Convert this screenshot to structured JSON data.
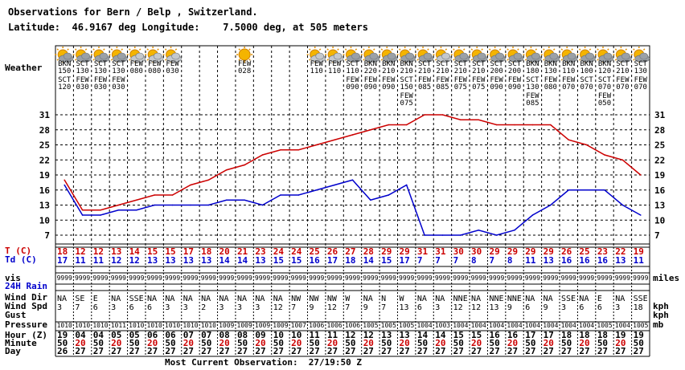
{
  "header": {
    "title": "Observations for Bern / Belp , Switzerland.",
    "latlon": "Latitude:  46.9167 deg Longitude:    7.5000 deg, at 505 meters"
  },
  "footer": {
    "most_current": "Most Current Observation:  27/19:50 Z"
  },
  "row_labels": {
    "weather": "Weather",
    "t": "T (C)",
    "td": "Td (C)",
    "vis": "vis",
    "rain": "24H Rain",
    "wdir": "Wind Dir",
    "wspd": "Wind Spd",
    "gust": "Gust",
    "pressure": "Pressure",
    "hour": "Hour (Z)",
    "minute": "Minute",
    "day": "Day"
  },
  "units": {
    "vis": "miles",
    "wspd": "kph",
    "gust": "kph",
    "pressure": "mb"
  },
  "colors": {
    "temp": "#cc0000",
    "dew": "#0000cc",
    "time_red": "#cc0000",
    "grid": "#000000"
  },
  "observations": [
    {
      "clouds": [
        "BKN150",
        "SCT120"
      ],
      "icon": "cloudy-icon",
      "t": 18,
      "td": 17,
      "vis": "9999",
      "wdir": "NA",
      "wspd": "3",
      "pres": "1010",
      "hour": "19",
      "min": "50",
      "day": "26"
    },
    {
      "clouds": [
        "SCT130",
        "FEW030"
      ],
      "icon": "cloudy-icon",
      "t": 12,
      "td": 11,
      "vis": "9999",
      "wdir": "SE",
      "wspd": "7",
      "pres": "1010",
      "hour": "04",
      "min": "20",
      "day": "27"
    },
    {
      "clouds": [
        "SCT130",
        "FEW030"
      ],
      "icon": "cloudy-icon",
      "t": 12,
      "td": 11,
      "vis": "9999",
      "wdir": "E",
      "wspd": "6",
      "pres": "1010",
      "hour": "04",
      "min": "50",
      "day": "27"
    },
    {
      "clouds": [
        "SCT130",
        "FEW030"
      ],
      "icon": "cloudy-icon",
      "t": 13,
      "td": 12,
      "vis": "9999",
      "wdir": "NA",
      "wspd": "3",
      "pres": "1011",
      "hour": "05",
      "min": "20",
      "day": "27"
    },
    {
      "clouds": [
        "FEW080"
      ],
      "icon": "partly-sunny-icon",
      "t": 14,
      "td": 12,
      "vis": "9999",
      "wdir": "SSE",
      "wspd": "6",
      "pres": "1010",
      "hour": "05",
      "min": "50",
      "day": "27"
    },
    {
      "clouds": [
        "FEW080"
      ],
      "icon": "partly-sunny-icon",
      "t": 15,
      "td": 13,
      "vis": "9999",
      "wdir": "NA",
      "wspd": "6",
      "pres": "1010",
      "hour": "06",
      "min": "20",
      "day": "27"
    },
    {
      "clouds": [
        "FEW030"
      ],
      "icon": "partly-sunny-icon",
      "t": 15,
      "td": 13,
      "vis": "9999",
      "wdir": "NA",
      "wspd": "3",
      "pres": "1010",
      "hour": "06",
      "min": "50",
      "day": "27"
    },
    {
      "clouds": [],
      "icon": "",
      "t": 17,
      "td": 13,
      "vis": "9999",
      "wdir": "NA",
      "wspd": "3",
      "pres": "1010",
      "hour": "07",
      "min": "20",
      "day": "27"
    },
    {
      "clouds": [],
      "icon": "",
      "t": 18,
      "td": 13,
      "vis": "9999",
      "wdir": "NA",
      "wspd": "2",
      "pres": "1010",
      "hour": "07",
      "min": "50",
      "day": "27"
    },
    {
      "clouds": [],
      "icon": "",
      "t": 20,
      "td": 14,
      "vis": "9999",
      "wdir": "NA",
      "wspd": "3",
      "pres": "1009",
      "hour": "08",
      "min": "20",
      "day": "27"
    },
    {
      "clouds": [
        "FEW028"
      ],
      "icon": "sunny-icon",
      "t": 21,
      "td": 14,
      "vis": "9999",
      "wdir": "NA",
      "wspd": "3",
      "pres": "1009",
      "hour": "08",
      "min": "50",
      "day": "27"
    },
    {
      "clouds": [],
      "icon": "",
      "t": 23,
      "td": 13,
      "vis": "9999",
      "wdir": "NA",
      "wspd": "3",
      "pres": "1009",
      "hour": "09",
      "min": "20",
      "day": "27"
    },
    {
      "clouds": [],
      "icon": "",
      "t": 24,
      "td": 15,
      "vis": "9999",
      "wdir": "NA",
      "wspd": "12",
      "pres": "1009",
      "hour": "10",
      "min": "50",
      "day": "27"
    },
    {
      "clouds": [],
      "icon": "",
      "t": 24,
      "td": 15,
      "vis": "9999",
      "wdir": "NW",
      "wspd": "7",
      "pres": "1007",
      "hour": "10",
      "min": "20",
      "day": "27"
    },
    {
      "clouds": [
        "FEW110"
      ],
      "icon": "partly-sunny-icon",
      "t": 25,
      "td": 16,
      "vis": "9999",
      "wdir": "NW",
      "wspd": "9",
      "pres": "1006",
      "hour": "11",
      "min": "50",
      "day": "27"
    },
    {
      "clouds": [
        "FEW110"
      ],
      "icon": "partly-sunny-icon",
      "t": 26,
      "td": 17,
      "vis": "9999",
      "wdir": "NW",
      "wspd": "12",
      "pres": "1006",
      "hour": "11",
      "min": "20",
      "day": "27"
    },
    {
      "clouds": [
        "SCT110",
        "FEW090"
      ],
      "icon": "cloudy-icon",
      "t": 27,
      "td": 18,
      "vis": "9999",
      "wdir": "W",
      "wspd": "7",
      "pres": "1006",
      "hour": "12",
      "min": "50",
      "day": "27"
    },
    {
      "clouds": [
        "BKN220",
        "FEW090"
      ],
      "icon": "cloudy-icon",
      "t": 28,
      "td": 14,
      "vis": "9999",
      "wdir": "NA",
      "wspd": "9",
      "pres": "1005",
      "hour": "12",
      "min": "20",
      "day": "27"
    },
    {
      "clouds": [
        "BKN210",
        "FEW090"
      ],
      "icon": "cloudy-icon",
      "t": 29,
      "td": 15,
      "vis": "9999",
      "wdir": "N",
      "wspd": "7",
      "pres": "1005",
      "hour": "13",
      "min": "50",
      "day": "27"
    },
    {
      "clouds": [
        "BKN210",
        "SCT150",
        "FEW075"
      ],
      "icon": "cloudy-icon",
      "t": 29,
      "td": 17,
      "vis": "9999",
      "wdir": "W",
      "wspd": "13",
      "pres": "1005",
      "hour": "13",
      "min": "20",
      "day": "27"
    },
    {
      "clouds": [
        "SCT210",
        "FEW085"
      ],
      "icon": "cloudy-icon",
      "t": 31,
      "td": 7,
      "vis": "9999",
      "wdir": "NA",
      "wspd": "6",
      "pres": "1004",
      "hour": "14",
      "min": "50",
      "day": "27"
    },
    {
      "clouds": [
        "SCT210",
        "FEW085"
      ],
      "icon": "partly-sunny-icon",
      "t": 31,
      "td": 7,
      "vis": "9999",
      "wdir": "NA",
      "wspd": "3",
      "pres": "1003",
      "hour": "14",
      "min": "20",
      "day": "27"
    },
    {
      "clouds": [
        "SCT210",
        "FEW075"
      ],
      "icon": "cloudy-icon",
      "t": 30,
      "td": 7,
      "vis": "9999",
      "wdir": "NNE",
      "wspd": "12",
      "pres": "1004",
      "hour": "15",
      "min": "50",
      "day": "27"
    },
    {
      "clouds": [
        "SCT210",
        "FEW075"
      ],
      "icon": "cloudy-icon",
      "t": 30,
      "td": 8,
      "vis": "9999",
      "wdir": "NA",
      "wspd": "12",
      "pres": "1004",
      "hour": "15",
      "min": "20",
      "day": "27"
    },
    {
      "clouds": [
        "SCT200",
        "FEW090"
      ],
      "icon": "cloudy-icon",
      "t": 29,
      "td": 7,
      "vis": "9999",
      "wdir": "NNE",
      "wspd": "13",
      "pres": "1004",
      "hour": "16",
      "min": "50",
      "day": "27"
    },
    {
      "clouds": [
        "SCT200",
        "FEW090"
      ],
      "icon": "cloudy-icon",
      "t": 29,
      "td": 8,
      "vis": "9999",
      "wdir": "NNE",
      "wspd": "9",
      "pres": "1004",
      "hour": "16",
      "min": "20",
      "day": "27"
    },
    {
      "clouds": [
        "BKN180",
        "SCT130",
        "FEW085"
      ],
      "icon": "cloudy-icon",
      "t": 29,
      "td": 11,
      "vis": "9999",
      "wdir": "NA",
      "wspd": "6",
      "pres": "1004",
      "hour": "17",
      "min": "50",
      "day": "27"
    },
    {
      "clouds": [
        "BKN130",
        "FEW080"
      ],
      "icon": "cloudy-icon",
      "t": 29,
      "td": 13,
      "vis": "9999",
      "wdir": "NA",
      "wspd": "9",
      "pres": "1004",
      "hour": "17",
      "min": "20",
      "day": "27"
    },
    {
      "clouds": [
        "BKN110",
        "FEW070"
      ],
      "icon": "cloudy-icon",
      "t": 26,
      "td": 16,
      "vis": "9999",
      "wdir": "SSE",
      "wspd": "3",
      "pres": "1004",
      "hour": "18",
      "min": "50",
      "day": "27"
    },
    {
      "clouds": [
        "BKN100",
        "SCT070"
      ],
      "icon": "cloudy-icon",
      "t": 25,
      "td": 16,
      "vis": "9999",
      "wdir": "NA",
      "wspd": "6",
      "pres": "1004",
      "hour": "18",
      "min": "20",
      "day": "27"
    },
    {
      "clouds": [
        "BKN120",
        "SCT070",
        "FEW050"
      ],
      "icon": "cloudy-icon",
      "t": 23,
      "td": 16,
      "vis": "9999",
      "wdir": "E",
      "wspd": "6",
      "pres": "1005",
      "hour": "18",
      "min": "50",
      "day": "27"
    },
    {
      "clouds": [
        "SCT210",
        "FEW070"
      ],
      "icon": "cloudy-icon",
      "t": 22,
      "td": 13,
      "vis": "9999",
      "wdir": "NA",
      "wspd": "3",
      "pres": "1004",
      "hour": "19",
      "min": "20",
      "day": "27"
    },
    {
      "clouds": [
        "SCT130",
        "FEW070"
      ],
      "icon": "cloudy-icon",
      "t": 19,
      "td": 11,
      "vis": "9999",
      "wdir": "SSE",
      "wspd": "18",
      "pres": "1005",
      "hour": "19",
      "min": "50",
      "day": "27"
    }
  ],
  "chart_data": {
    "type": "line",
    "title": "",
    "xlabel": "",
    "ylabel": "",
    "y_ticks": [
      7,
      10,
      13,
      16,
      19,
      22,
      25,
      28,
      31
    ],
    "ylim": [
      4,
      34
    ],
    "grid": true,
    "x": [
      "19:50",
      "04:20",
      "04:50",
      "05:20",
      "05:50",
      "06:20",
      "06:50",
      "07:20",
      "07:50",
      "08:20",
      "08:50",
      "09:20",
      "10:50",
      "10:20",
      "11:50",
      "11:20",
      "12:50",
      "12:20",
      "13:50",
      "13:20",
      "14:50",
      "14:20",
      "15:50",
      "15:20",
      "16:50",
      "16:20",
      "17:50",
      "17:20",
      "18:50",
      "18:20",
      "18:50",
      "19:20",
      "19:50"
    ],
    "series": [
      {
        "name": "T (C)",
        "values": [
          18,
          12,
          12,
          13,
          14,
          15,
          15,
          17,
          18,
          20,
          21,
          23,
          24,
          24,
          25,
          26,
          27,
          28,
          29,
          29,
          31,
          31,
          30,
          30,
          29,
          29,
          29,
          29,
          26,
          25,
          23,
          22,
          19
        ]
      },
      {
        "name": "Td (C)",
        "values": [
          17,
          11,
          11,
          12,
          12,
          13,
          13,
          13,
          13,
          14,
          14,
          13,
          15,
          15,
          16,
          17,
          18,
          14,
          15,
          17,
          7,
          7,
          7,
          8,
          7,
          8,
          11,
          13,
          16,
          16,
          16,
          13,
          11
        ]
      }
    ]
  }
}
